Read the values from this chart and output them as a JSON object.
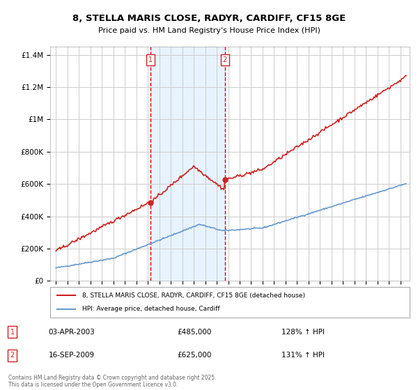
{
  "title": "8, STELLA MARIS CLOSE, RADYR, CARDIFF, CF15 8GE",
  "subtitle": "Price paid vs. HM Land Registry's House Price Index (HPI)",
  "legend_line1": "8, STELLA MARIS CLOSE, RADYR, CARDIFF, CF15 8GE (detached house)",
  "legend_line2": "HPI: Average price, detached house, Cardiff",
  "sale1_date": "03-APR-2003",
  "sale1_price": 485000,
  "sale1_hpi": "128% ↑ HPI",
  "sale2_date": "16-SEP-2009",
  "sale2_price": 625000,
  "sale2_hpi": "131% ↑ HPI",
  "footer": "Contains HM Land Registry data © Crown copyright and database right 2025.\nThis data is licensed under the Open Government Licence v3.0.",
  "hpi_color": "#6699cc",
  "price_color": "#cc2222",
  "sale1_x": 2003.25,
  "sale2_x": 2009.71,
  "vline_color": "#dd0000",
  "bg_shade_color": "#ddeeff",
  "grid_color": "#cccccc"
}
